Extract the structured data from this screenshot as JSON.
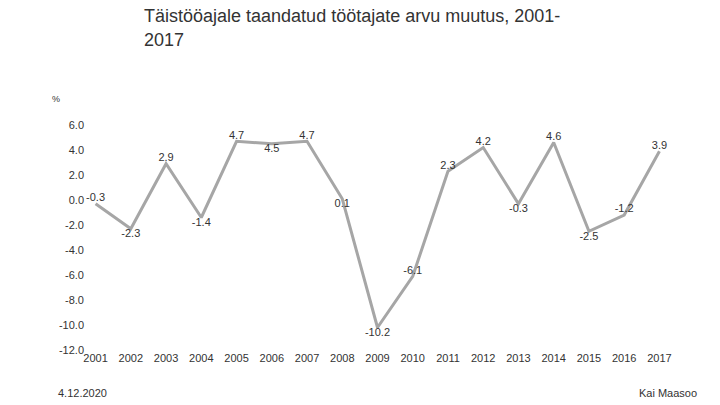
{
  "chart_data": {
    "type": "line",
    "title": "Täistööajale taandatud töötajate arvu muutus, 2001-\n2017",
    "y_label": "%",
    "categories": [
      "2001",
      "2002",
      "2003",
      "2004",
      "2005",
      "2006",
      "2007",
      "2008",
      "2009",
      "2010",
      "2011",
      "2012",
      "2013",
      "2014",
      "2015",
      "2016",
      "2017"
    ],
    "values": [
      -0.3,
      -2.3,
      2.9,
      -1.4,
      4.7,
      4.5,
      4.7,
      0.1,
      -10.2,
      -6.1,
      2.3,
      4.2,
      -0.3,
      4.6,
      -2.5,
      -1.2,
      3.9
    ],
    "color": "#a6a6a6",
    "ylim": [
      -12,
      6
    ],
    "yticks": [
      {
        "value": -12,
        "label": "-12.0"
      },
      {
        "value": -10,
        "label": "-10.0"
      },
      {
        "value": -8,
        "label": "-8.0"
      },
      {
        "value": -6,
        "label": "-6.0"
      },
      {
        "value": -4,
        "label": "-4.0"
      },
      {
        "value": -2,
        "label": "-2.0"
      },
      {
        "value": 0,
        "label": "0.0"
      },
      {
        "value": 2,
        "label": "2.0"
      },
      {
        "value": 4,
        "label": "4.0"
      },
      {
        "value": 6,
        "label": "6.0"
      }
    ],
    "grid": false,
    "data_labels": true,
    "annotations": [
      "4.12.2020",
      "Kai Maasoo"
    ]
  }
}
